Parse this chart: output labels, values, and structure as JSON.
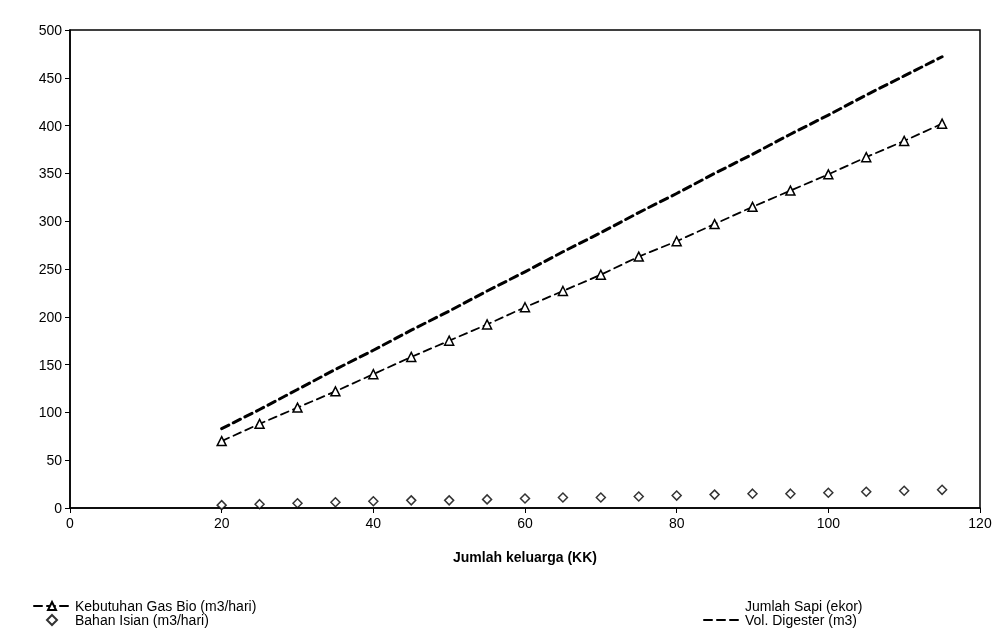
{
  "chart_data": {
    "type": "line",
    "xlabel": "Jumlah keluarga (KK)",
    "x": [
      20,
      25,
      30,
      35,
      40,
      45,
      50,
      55,
      60,
      65,
      70,
      75,
      80,
      85,
      90,
      95,
      100,
      105,
      110,
      115
    ],
    "xlim": [
      0,
      120
    ],
    "xticks": [
      0,
      20,
      40,
      60,
      80,
      100,
      120
    ],
    "ylim": [
      0,
      500
    ],
    "yticks": [
      0,
      50,
      100,
      150,
      200,
      250,
      300,
      350,
      400,
      450,
      500
    ],
    "grid": false,
    "legend": "bottom",
    "series": [
      {
        "name": "Kebutuhan Gas Bio (m3/hari)",
        "color": "#000000",
        "marker": "triangle",
        "line_style": "dashed",
        "values": [
          70,
          88,
          105,
          122,
          140,
          158,
          175,
          192,
          210,
          227,
          244,
          263,
          279,
          297,
          315,
          332,
          349,
          367,
          384,
          402
        ]
      },
      {
        "name": "Bahan Isian (m3/hari)",
        "type": "scatter",
        "color": "#000000",
        "marker": "diamond",
        "values": [
          3,
          4,
          5,
          6,
          7,
          8,
          8,
          9,
          10,
          11,
          11,
          12,
          13,
          14,
          15,
          15,
          16,
          17,
          18,
          19
        ]
      },
      {
        "name": "Jumlah Sapi (ekor)",
        "marker": "none",
        "values": [
          null,
          null,
          null,
          null,
          null,
          null,
          null,
          null,
          null,
          null,
          null,
          null,
          null,
          null,
          null,
          null,
          null,
          null,
          null,
          null
        ]
      },
      {
        "name": "Vol. Digester (m3)",
        "color": "#000000",
        "marker": "none",
        "line_style": "dashed",
        "values": [
          83,
          103,
          124,
          145,
          165,
          186,
          206,
          227,
          247,
          268,
          288,
          309,
          329,
          350,
          370,
          391,
          411,
          432,
          452,
          472
        ]
      }
    ]
  }
}
